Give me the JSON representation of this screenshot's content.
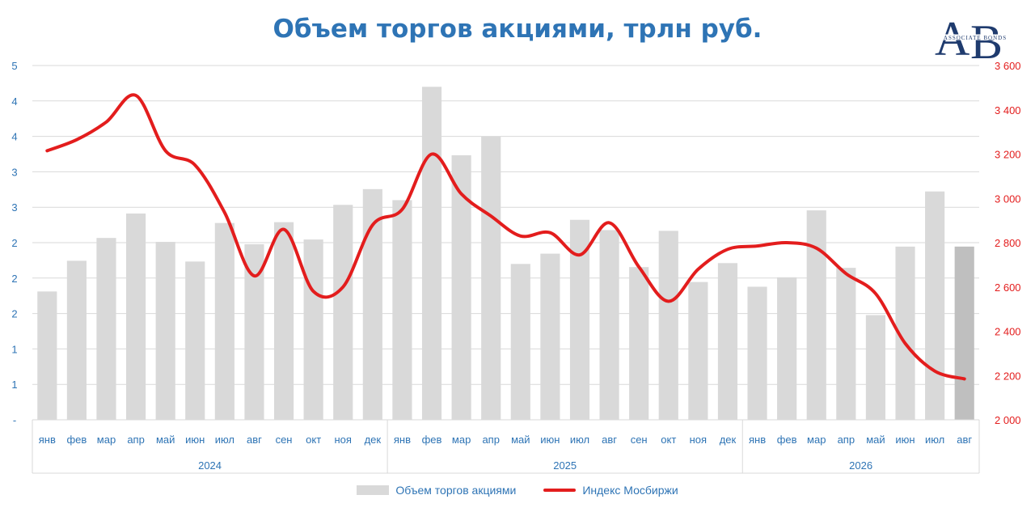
{
  "chart_data": {
    "type": "bar+line",
    "title": "Объем торгов акциями, трлн руб.",
    "years": [
      {
        "label": "2024",
        "months": 12
      },
      {
        "label": "2025",
        "months": 12
      },
      {
        "label": "2026",
        "months": 8
      }
    ],
    "categories": [
      "янв",
      "фев",
      "мар",
      "апр",
      "май",
      "июн",
      "июл",
      "авг",
      "сен",
      "окт",
      "ноя",
      "дек",
      "янв",
      "фев",
      "мар",
      "апр",
      "май",
      "июн",
      "июл",
      "авг",
      "сен",
      "окт",
      "ноя",
      "дек",
      "янв",
      "фев",
      "мар",
      "апр",
      "май",
      "июн",
      "июл",
      "авг"
    ],
    "left_axis": {
      "ylim": [
        0,
        4.5
      ],
      "tick_labels": [
        "-",
        "1",
        "1",
        "2",
        "2",
        "2",
        "3",
        "3",
        "4",
        "4",
        "5"
      ]
    },
    "right_axis": {
      "ylim": [
        2000,
        3600
      ],
      "ticks": [
        2000,
        2200,
        2400,
        2600,
        2800,
        3000,
        3200,
        3400,
        3600
      ],
      "tick_labels": [
        "2 000",
        "2 200",
        "2 400",
        "2 600",
        "2 800",
        "3 000",
        "3 200",
        "3 400",
        "3 600"
      ]
    },
    "series": [
      {
        "name": "Объем торгов акциями",
        "axis": "left",
        "color": "#d9d9d9",
        "highlight_last_color": "#bfbfbf",
        "values": [
          1.63,
          2.02,
          2.31,
          2.62,
          2.26,
          2.01,
          2.5,
          2.23,
          2.51,
          2.29,
          2.73,
          2.93,
          2.79,
          4.23,
          3.36,
          3.6,
          1.98,
          2.11,
          2.54,
          2.41,
          1.94,
          2.4,
          1.75,
          1.99,
          1.69,
          1.81,
          2.66,
          1.93,
          1.33,
          2.2,
          2.9,
          2.2
        ]
      },
      {
        "name": "Индекс Мосбиржи",
        "axis": "right",
        "color": "#e31d1d",
        "values": [
          3215,
          3265,
          3345,
          3465,
          3215,
          3150,
          2935,
          2650,
          2860,
          2580,
          2600,
          2880,
          2950,
          3200,
          3020,
          2920,
          2830,
          2845,
          2745,
          2890,
          2690,
          2535,
          2680,
          2770,
          2785,
          2800,
          2775,
          2660,
          2570,
          2345,
          2220,
          2185
        ]
      }
    ],
    "legend_position": "bottom",
    "grid": true
  }
}
